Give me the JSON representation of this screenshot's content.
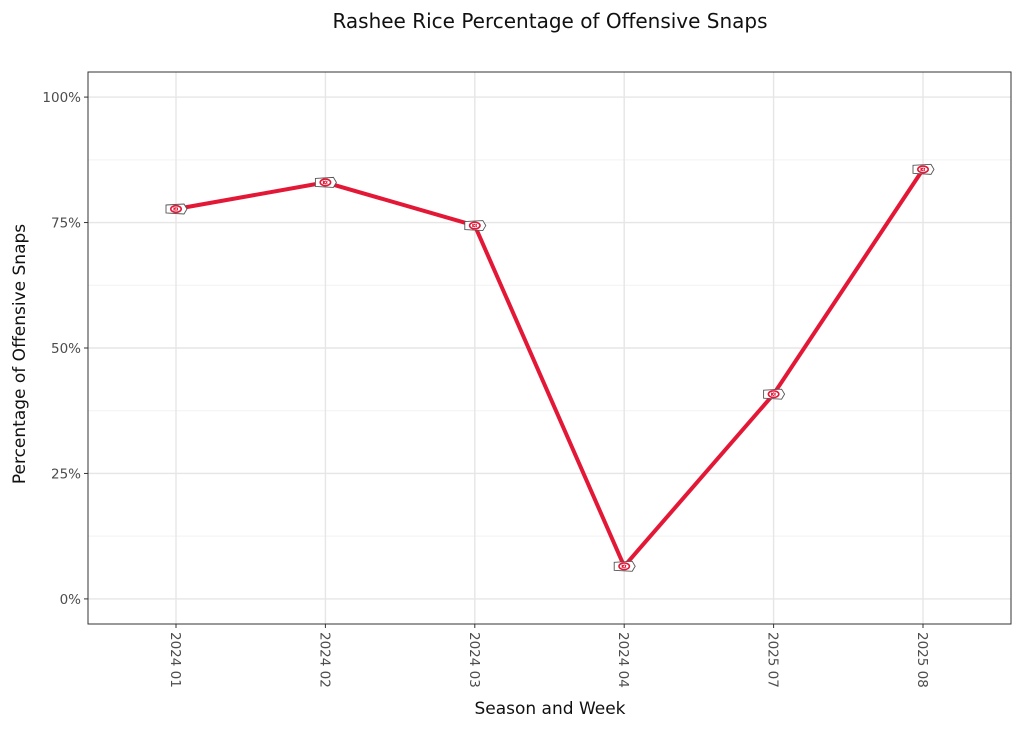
{
  "chart_data": {
    "type": "line",
    "title": "Rashee Rice Percentage of Offensive Snaps",
    "xlabel": "Season and Week",
    "ylabel": "Percentage of Offensive Snaps",
    "categories": [
      "2024 01",
      "2024 02",
      "2024 03",
      "2024 04",
      "2025 07",
      "2025 08"
    ],
    "values": [
      77.7,
      83.0,
      74.4,
      6.5,
      40.8,
      85.6
    ],
    "ylim": [
      -5,
      105
    ],
    "yticks": [
      0,
      25,
      50,
      75,
      100
    ],
    "ytick_labels": [
      "0%",
      "25%",
      "50%",
      "75%",
      "100%"
    ],
    "grid": true,
    "line_color": "#E31837",
    "marker": "chiefs-logo-icon",
    "marker_color": "#E31837"
  }
}
